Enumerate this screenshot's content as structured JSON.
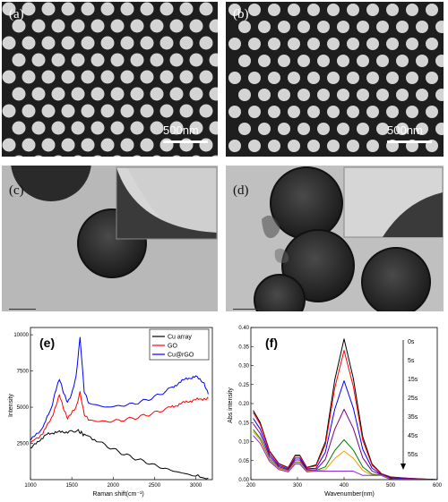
{
  "panels": {
    "a": {
      "label": "(a)",
      "scale": "500nm"
    },
    "b": {
      "label": "(b)",
      "scale": "500nm"
    },
    "c": {
      "label": "(c)"
    },
    "d": {
      "label": "(d)"
    },
    "e": {
      "label": "(e)"
    },
    "f": {
      "label": "(f)"
    }
  },
  "chart_data": [
    {
      "type": "line",
      "panel": "(e)",
      "xlabel": "Raman shift(cm⁻¹)",
      "ylabel": "Intensity",
      "xlim": [
        1000,
        3200
      ],
      "ylim": [
        0,
        10500
      ],
      "xticks": [
        1000,
        1500,
        2000,
        2500,
        3000
      ],
      "yticks": [
        2500,
        5000,
        7500,
        10000
      ],
      "legend_position": "top-right",
      "series": [
        {
          "name": "Cu array",
          "color": "#000000",
          "x": [
            1000,
            1100,
            1200,
            1300,
            1400,
            1500,
            1580,
            1650,
            1800,
            2000,
            2200,
            2400,
            2600,
            2800,
            3000,
            3150
          ],
          "y": [
            2100,
            2700,
            3100,
            3300,
            3250,
            3400,
            3350,
            3100,
            2700,
            2100,
            1600,
            1200,
            800,
            500,
            250,
            100
          ]
        },
        {
          "name": "GO",
          "color": "#ff0000",
          "x": [
            1000,
            1150,
            1250,
            1300,
            1350,
            1400,
            1450,
            1500,
            1550,
            1600,
            1650,
            1700,
            1900,
            2100,
            2300,
            2500,
            2700,
            2800,
            2900,
            3000,
            3100,
            3150
          ],
          "y": [
            2500,
            3200,
            4200,
            5000,
            5800,
            4900,
            4300,
            4600,
            4900,
            6100,
            4500,
            4100,
            4000,
            4100,
            4300,
            4600,
            5000,
            5200,
            5400,
            5500,
            5600,
            5600
          ]
        },
        {
          "name": "Cu@rGO",
          "color": "#0000ff",
          "x": [
            1000,
            1150,
            1250,
            1300,
            1350,
            1400,
            1450,
            1500,
            1550,
            1600,
            1650,
            1700,
            1900,
            2100,
            2300,
            2500,
            2700,
            2800,
            2900,
            3000,
            3100,
            3150
          ],
          "y": [
            2700,
            3600,
            4900,
            6100,
            6900,
            6000,
            5400,
            5900,
            7000,
            9900,
            6100,
            5300,
            5000,
            5100,
            5300,
            5700,
            6300,
            6700,
            7000,
            7100,
            6700,
            5900
          ]
        }
      ]
    },
    {
      "type": "line",
      "panel": "(f)",
      "xlabel": "Wavenumber(nm)",
      "ylabel": "Abs intensity",
      "xlim": [
        200,
        600
      ],
      "ylim": [
        0,
        0.4
      ],
      "xticks": [
        200,
        300,
        400,
        500,
        600
      ],
      "yticks": [
        0.0,
        0.05,
        0.1,
        0.15,
        0.2,
        0.25,
        0.3,
        0.35,
        0.4
      ],
      "series": [
        {
          "name": "0s",
          "color": "#000000",
          "peak": 0.36
        },
        {
          "name": "5s",
          "color": "#ff0000",
          "peak": 0.33
        },
        {
          "name": "15s",
          "color": "#0000ff",
          "peak": 0.25
        },
        {
          "name": "25s",
          "color": "#800080",
          "peak": 0.175
        },
        {
          "name": "35s",
          "color": "#008000",
          "peak": 0.095
        },
        {
          "name": "45s",
          "color": "#ff9900",
          "peak": 0.065
        },
        {
          "name": "55s",
          "color": "#8a2be2",
          "peak": 0.01
        }
      ],
      "x": [
        205,
        220,
        240,
        260,
        280,
        295,
        305,
        320,
        340,
        360,
        380,
        400,
        420,
        440,
        460,
        480,
        500,
        540,
        600
      ],
      "shape": [
        0.4,
        0.33,
        0.17,
        0.07,
        0.06,
        0.14,
        0.14,
        0.07,
        0.08,
        0.25,
        0.7,
        1.0,
        0.71,
        0.3,
        0.1,
        0.03,
        0.02,
        0.01,
        0.0
      ],
      "annotation_arrow": "down"
    }
  ]
}
